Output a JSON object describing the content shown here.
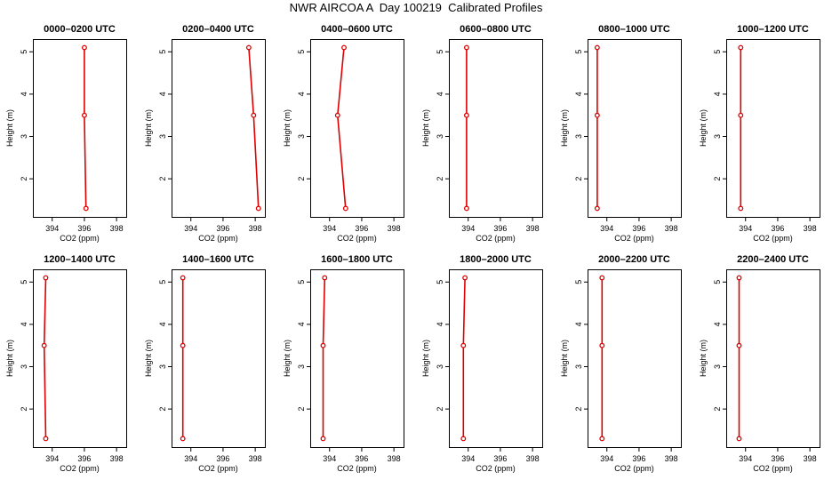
{
  "title": "NWR AIRCOA A  Day 100219  Calibrated Profiles",
  "colors": {
    "line": "#dd0000",
    "frame": "#000000"
  },
  "chart_data": {
    "type": "line",
    "xlabel": "CO2 (ppm)",
    "ylabel": "Height (m)",
    "xlim": [
      392.8,
      398.6
    ],
    "ylim": [
      1.1,
      5.3
    ],
    "xticks": [
      394,
      396,
      398
    ],
    "yticks": [
      2,
      3,
      4,
      5
    ],
    "heights": [
      1.3,
      3.5,
      5.1
    ],
    "panels": [
      {
        "title": "0000–0200 UTC",
        "co2": [
          396.1,
          396.0,
          396.0
        ]
      },
      {
        "title": "0200–0400 UTC",
        "co2": [
          398.2,
          397.9,
          397.6
        ]
      },
      {
        "title": "0400–0600 UTC",
        "co2": [
          395.0,
          394.5,
          394.9
        ]
      },
      {
        "title": "0600–0800 UTC",
        "co2": [
          393.9,
          393.9,
          393.9
        ]
      },
      {
        "title": "0800–1000 UTC",
        "co2": [
          393.4,
          393.4,
          393.4
        ]
      },
      {
        "title": "1000–1200 UTC",
        "co2": [
          393.7,
          393.7,
          393.7
        ]
      },
      {
        "title": "1200–1400 UTC",
        "co2": [
          393.6,
          393.5,
          393.6
        ]
      },
      {
        "title": "1400–1600 UTC",
        "co2": [
          393.5,
          393.5,
          393.5
        ]
      },
      {
        "title": "1600–1800 UTC",
        "co2": [
          393.6,
          393.6,
          393.7
        ]
      },
      {
        "title": "1800–2000 UTC",
        "co2": [
          393.7,
          393.7,
          393.8
        ]
      },
      {
        "title": "2000–2200 UTC",
        "co2": [
          393.7,
          393.7,
          393.7
        ]
      },
      {
        "title": "2200–2400 UTC",
        "co2": [
          393.6,
          393.6,
          393.6
        ]
      }
    ]
  }
}
